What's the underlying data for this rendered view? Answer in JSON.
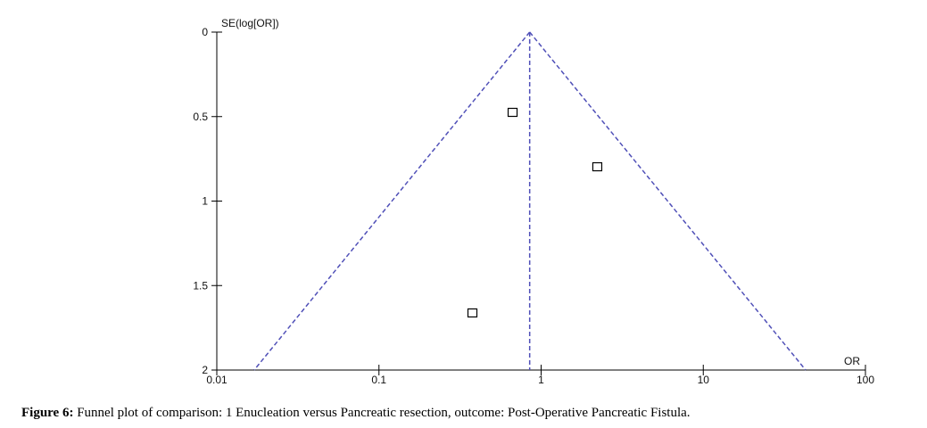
{
  "chart_data": {
    "type": "funnel",
    "y_label": "SE(log[OR])",
    "x_label": "OR",
    "x": [
      0.667,
      2.22,
      0.377
    ],
    "values": [
      0.475,
      0.797,
      1.662
    ],
    "xlim": [
      0.01,
      100
    ],
    "xticks": [
      0.01,
      0.1,
      1,
      10,
      100
    ],
    "x_log": true,
    "ylim": [
      0,
      2
    ],
    "yticks": [
      0,
      0.5,
      1,
      1.5,
      2
    ],
    "y_inverted": true,
    "pooled_or": 0.85,
    "funnel_limits_at_ymax": [
      0.017,
      42.8
    ],
    "line_color": "#5050b8",
    "marker_color": "#000000",
    "caption_label": "Figure 6:",
    "caption_text": "Funnel plot of comparison: 1 Enucleation versus Pancreatic resection, outcome:  Post-Operative Pancreatic Fistula."
  }
}
